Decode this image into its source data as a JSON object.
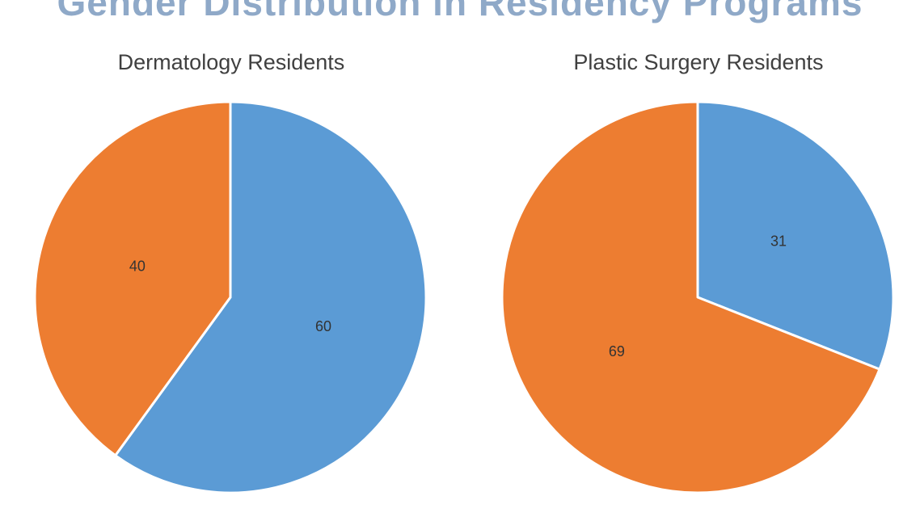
{
  "title": "Gender Distribution in Residency Programs",
  "colors": {
    "title": "#8fa9c8",
    "chart_title": "#404040",
    "label": "#333333",
    "blue": "#5b9bd5",
    "orange": "#ed7d31",
    "separator": "#ffffff"
  },
  "chart_data": [
    {
      "type": "pie",
      "title": "Dermatology Residents",
      "slices": [
        {
          "value": 60,
          "label": "60",
          "color": "#5b9bd5"
        },
        {
          "value": 40,
          "label": "40",
          "color": "#ed7d31"
        }
      ]
    },
    {
      "type": "pie",
      "title": "Plastic Surgery Residents",
      "slices": [
        {
          "value": 31,
          "label": "31",
          "color": "#5b9bd5"
        },
        {
          "value": 69,
          "label": "69",
          "color": "#ed7d31"
        }
      ]
    }
  ]
}
